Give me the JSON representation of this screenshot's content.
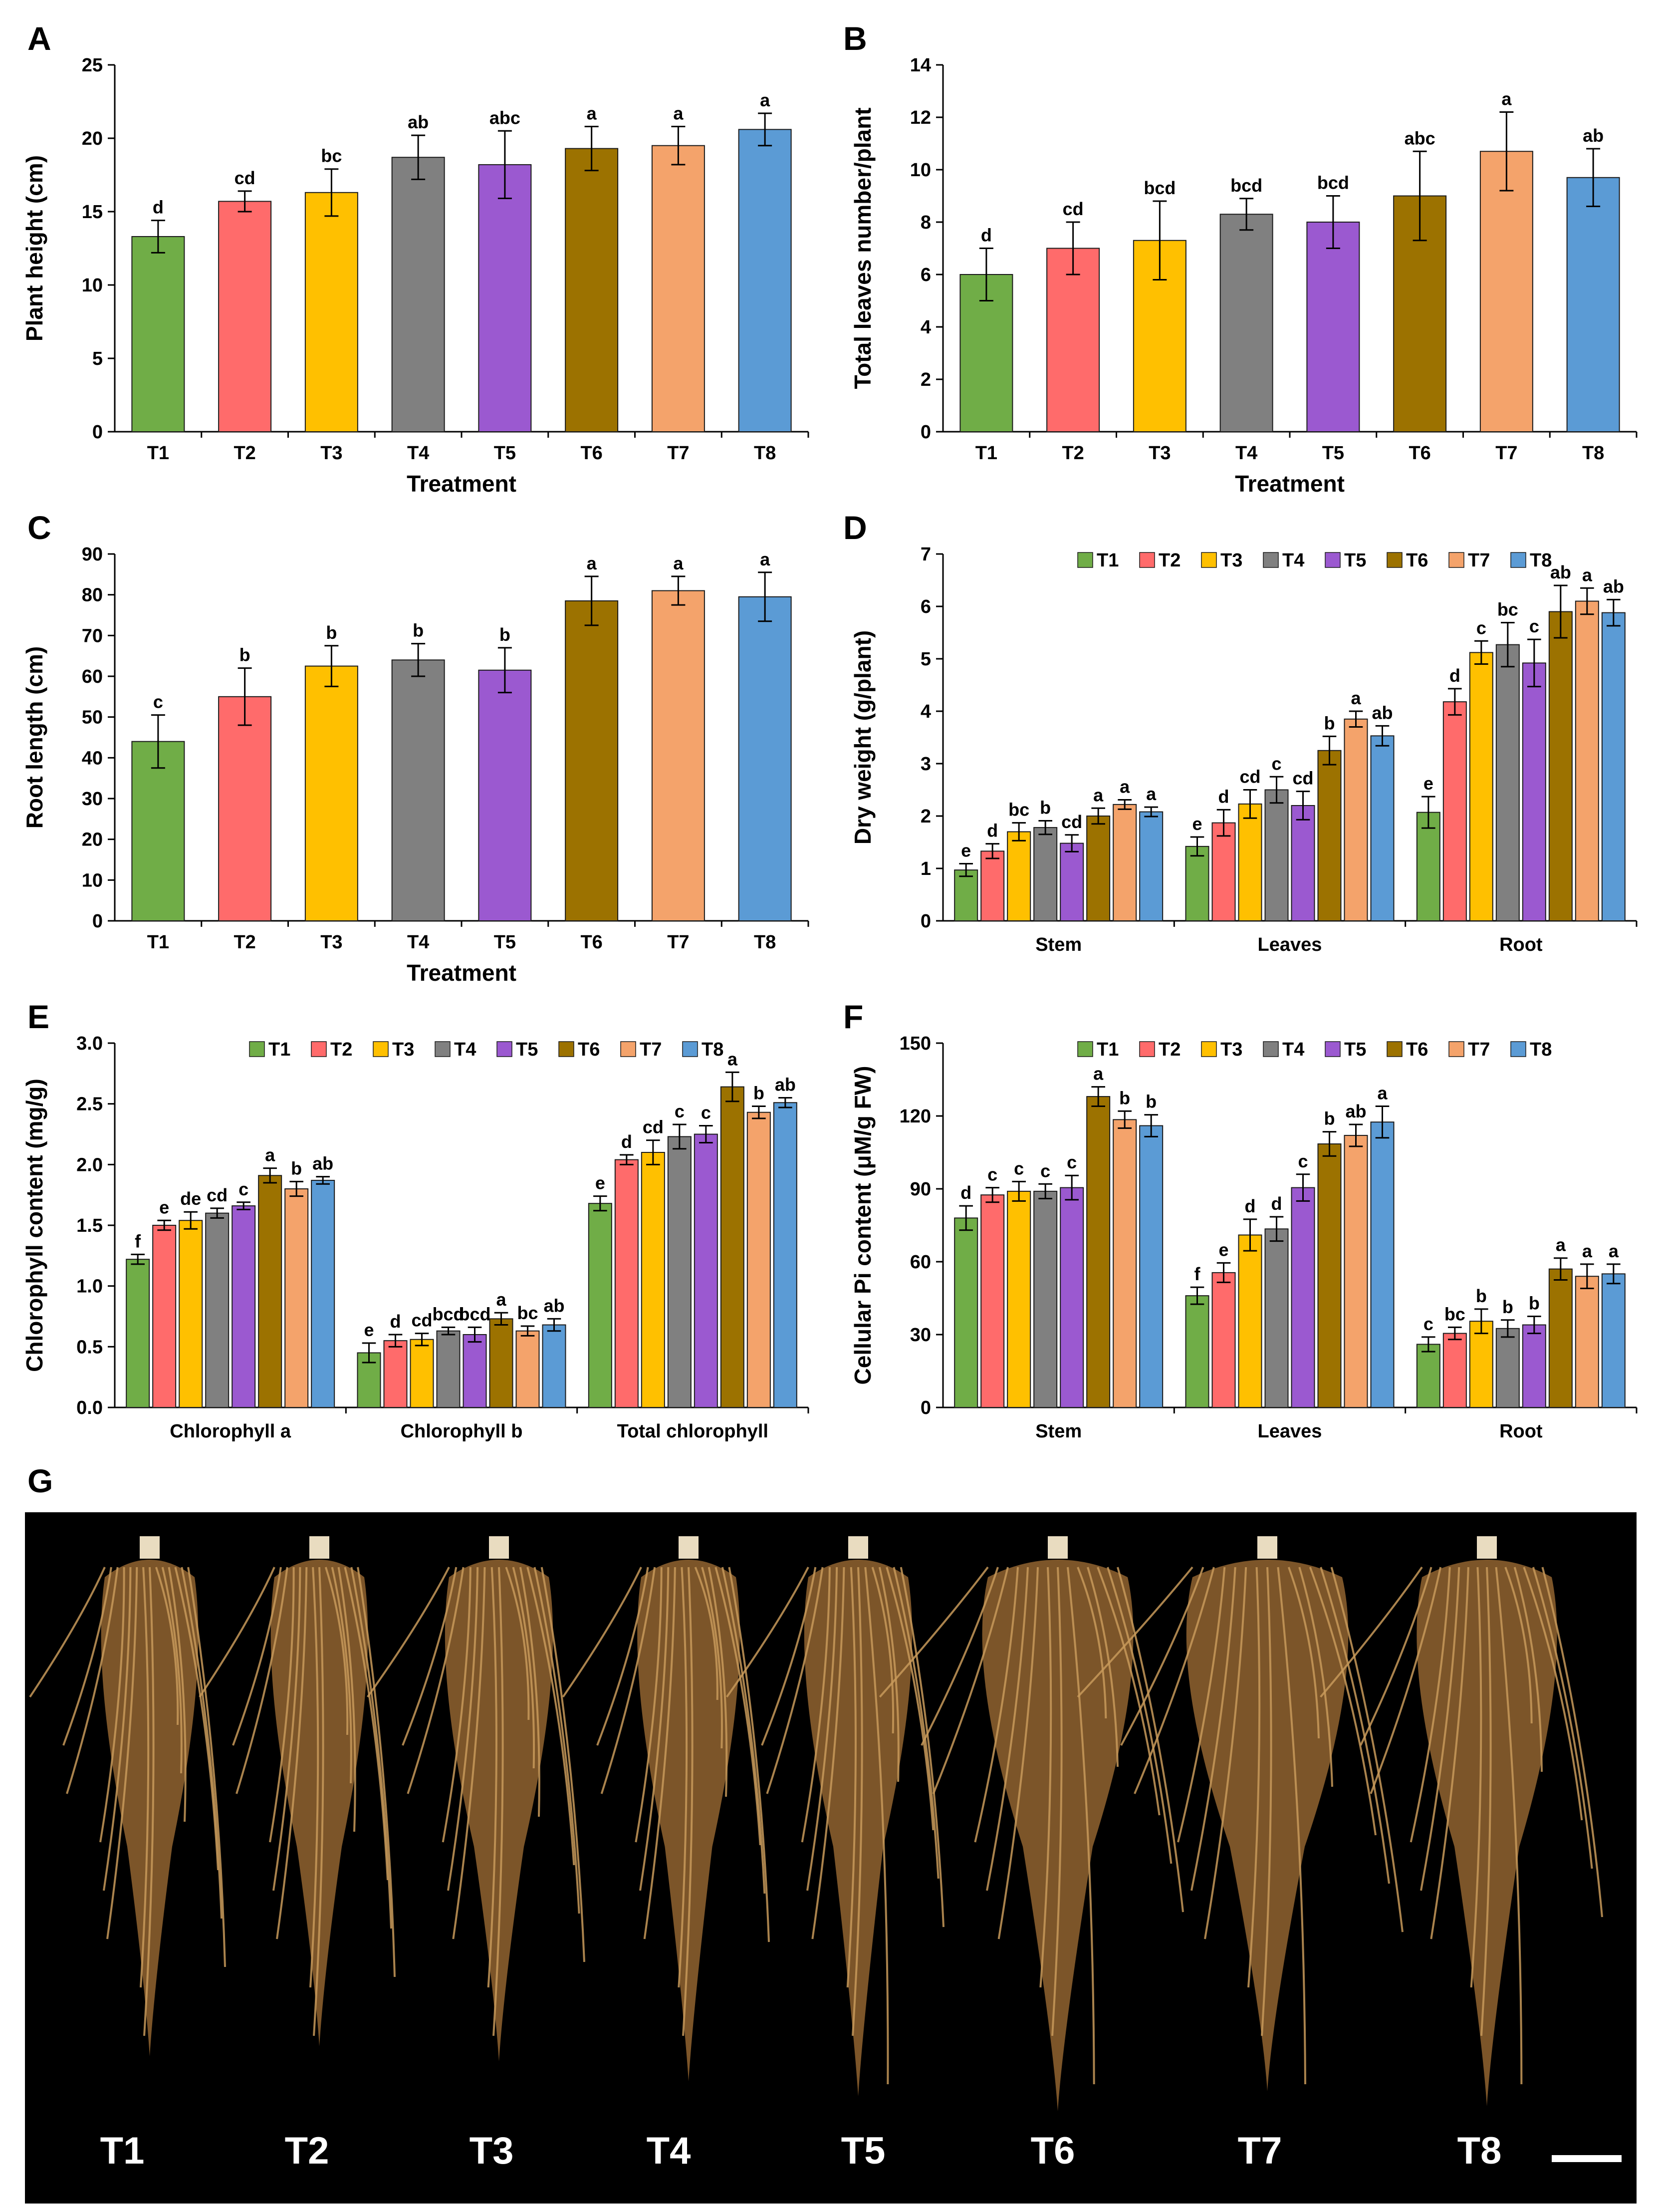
{
  "figure": {
    "photo": {
      "letter": "G",
      "labels": [
        "T1",
        "T2",
        "T3",
        "T4",
        "T5",
        "T6",
        "T7",
        "T8"
      ]
    }
  },
  "colors": {
    "T1": "#70AD47",
    "T2": "#FF6B6B",
    "T3": "#FFC000",
    "T4": "#808080",
    "T5": "#9B59D0",
    "T6": "#9C7200",
    "T7": "#F4A36B",
    "T8": "#5B9BD5"
  },
  "chart_data": [
    {
      "id": "A",
      "letter": "A",
      "type": "bar",
      "categories": [
        "T1",
        "T2",
        "T3",
        "T4",
        "T5",
        "T6",
        "T7",
        "T8"
      ],
      "values": [
        13.3,
        15.7,
        16.3,
        18.7,
        18.2,
        19.3,
        19.5,
        20.6
      ],
      "errors": [
        1.1,
        0.7,
        1.6,
        1.5,
        2.3,
        1.5,
        1.3,
        1.1
      ],
      "letters": [
        "d",
        "cd",
        "bc",
        "ab",
        "abc",
        "a",
        "a",
        "a"
      ],
      "ylim": [
        0,
        25
      ],
      "yticks": [
        "0",
        "5",
        "10",
        "15",
        "20",
        "25"
      ],
      "ylabel": "Plant height (cm)",
      "xlabel": "Treatment"
    },
    {
      "id": "B",
      "letter": "B",
      "type": "bar",
      "categories": [
        "T1",
        "T2",
        "T3",
        "T4",
        "T5",
        "T6",
        "T7",
        "T8"
      ],
      "values": [
        6.0,
        7.0,
        7.3,
        8.3,
        8.0,
        9.0,
        10.7,
        9.7
      ],
      "errors": [
        1.0,
        1.0,
        1.5,
        0.6,
        1.0,
        1.7,
        1.5,
        1.1
      ],
      "letters": [
        "d",
        "cd",
        "bcd",
        "bcd",
        "bcd",
        "abc",
        "a",
        "ab"
      ],
      "ylim": [
        0,
        14
      ],
      "yticks": [
        "0",
        "2",
        "4",
        "6",
        "8",
        "10",
        "12",
        "14"
      ],
      "ylabel": "Total leaves number/plant",
      "xlabel": "Treatment"
    },
    {
      "id": "C",
      "letter": "C",
      "type": "bar",
      "categories": [
        "T1",
        "T2",
        "T3",
        "T4",
        "T5",
        "T6",
        "T7",
        "T8"
      ],
      "values": [
        44,
        55,
        62.5,
        64,
        61.5,
        78.5,
        81,
        79.5
      ],
      "errors": [
        6.5,
        7,
        5,
        4,
        5.5,
        6,
        3.5,
        6
      ],
      "letters": [
        "c",
        "b",
        "b",
        "b",
        "b",
        "a",
        "a",
        "a"
      ],
      "ylim": [
        0,
        90
      ],
      "yticks": [
        "0",
        "10",
        "20",
        "30",
        "40",
        "50",
        "60",
        "70",
        "80",
        "90"
      ],
      "ylabel": "Root length (cm)",
      "xlabel": "Treatment"
    },
    {
      "id": "D",
      "letter": "D",
      "type": "bar",
      "groups": [
        "Stem",
        "Leaves",
        "Root"
      ],
      "legend": [
        "T1",
        "T2",
        "T3",
        "T4",
        "T5",
        "T6",
        "T7",
        "T8"
      ],
      "series": [
        {
          "name": "T1",
          "values": [
            0.97,
            1.42,
            2.07
          ],
          "errors": [
            0.12,
            0.18,
            0.3
          ],
          "letters": [
            "e",
            "e",
            "e"
          ]
        },
        {
          "name": "T2",
          "values": [
            1.33,
            1.87,
            4.18
          ],
          "errors": [
            0.14,
            0.25,
            0.25
          ],
          "letters": [
            "d",
            "d",
            "d"
          ]
        },
        {
          "name": "T3",
          "values": [
            1.7,
            2.23,
            5.12
          ],
          "errors": [
            0.17,
            0.27,
            0.22
          ],
          "letters": [
            "bc",
            "cd",
            "c"
          ]
        },
        {
          "name": "T4",
          "values": [
            1.78,
            2.5,
            5.27
          ],
          "errors": [
            0.13,
            0.25,
            0.42
          ],
          "letters": [
            "b",
            "c",
            "bc"
          ]
        },
        {
          "name": "T5",
          "values": [
            1.48,
            2.2,
            4.92
          ],
          "errors": [
            0.16,
            0.27,
            0.45
          ],
          "letters": [
            "cd",
            "cd",
            "c"
          ]
        },
        {
          "name": "T6",
          "values": [
            2.0,
            3.25,
            5.9
          ],
          "errors": [
            0.15,
            0.27,
            0.5
          ],
          "letters": [
            "a",
            "b",
            "ab"
          ]
        },
        {
          "name": "T7",
          "values": [
            2.22,
            3.85,
            6.1
          ],
          "errors": [
            0.09,
            0.15,
            0.25
          ],
          "letters": [
            "a",
            "a",
            "a"
          ]
        },
        {
          "name": "T8",
          "values": [
            2.08,
            3.53,
            5.88
          ],
          "errors": [
            0.09,
            0.19,
            0.25
          ],
          "letters": [
            "a",
            "ab",
            "ab"
          ]
        }
      ],
      "ylim": [
        0,
        7
      ],
      "yticks": [
        "0",
        "1",
        "2",
        "3",
        "4",
        "5",
        "6",
        "7"
      ],
      "ylabel": "Dry weight (g/plant)"
    },
    {
      "id": "E",
      "letter": "E",
      "type": "bar",
      "groups": [
        "Chlorophyll a",
        "Chlorophyll b",
        "Total chlorophyll"
      ],
      "legend": [
        "T1",
        "T2",
        "T3",
        "T4",
        "T5",
        "T6",
        "T7",
        "T8"
      ],
      "series": [
        {
          "name": "T1",
          "values": [
            1.22,
            0.45,
            1.68
          ],
          "errors": [
            0.04,
            0.08,
            0.06
          ],
          "letters": [
            "f",
            "e",
            "e"
          ]
        },
        {
          "name": "T2",
          "values": [
            1.5,
            0.55,
            2.04
          ],
          "errors": [
            0.04,
            0.05,
            0.04
          ],
          "letters": [
            "e",
            "d",
            "d"
          ]
        },
        {
          "name": "T3",
          "values": [
            1.54,
            0.56,
            2.1
          ],
          "errors": [
            0.07,
            0.05,
            0.1
          ],
          "letters": [
            "de",
            "cd",
            "cd"
          ]
        },
        {
          "name": "T4",
          "values": [
            1.6,
            0.63,
            2.23
          ],
          "errors": [
            0.04,
            0.03,
            0.1
          ],
          "letters": [
            "cd",
            "bcd",
            "c"
          ]
        },
        {
          "name": "T5",
          "values": [
            1.66,
            0.6,
            2.25
          ],
          "errors": [
            0.03,
            0.06,
            0.07
          ],
          "letters": [
            "c",
            "bcd",
            "c"
          ]
        },
        {
          "name": "T6",
          "values": [
            1.91,
            0.73,
            2.64
          ],
          "errors": [
            0.06,
            0.05,
            0.12
          ],
          "letters": [
            "a",
            "a",
            "a"
          ]
        },
        {
          "name": "T7",
          "values": [
            1.8,
            0.63,
            2.43
          ],
          "errors": [
            0.06,
            0.04,
            0.05
          ],
          "letters": [
            "b",
            "bc",
            "b"
          ]
        },
        {
          "name": "T8",
          "values": [
            1.87,
            0.68,
            2.51
          ],
          "errors": [
            0.03,
            0.05,
            0.04
          ],
          "letters": [
            "ab",
            "ab",
            "ab"
          ]
        }
      ],
      "ylim": [
        0,
        3.0
      ],
      "yticks": [
        "0.0",
        "0.5",
        "1.0",
        "1.5",
        "2.0",
        "2.5",
        "3.0"
      ],
      "ylabel": "Chlorophyll content (mg/g)"
    },
    {
      "id": "F",
      "letter": "F",
      "type": "bar",
      "groups": [
        "Stem",
        "Leaves",
        "Root"
      ],
      "legend": [
        "T1",
        "T2",
        "T3",
        "T4",
        "T5",
        "T6",
        "T7",
        "T8"
      ],
      "series": [
        {
          "name": "T1",
          "values": [
            78,
            46,
            26
          ],
          "errors": [
            5,
            3.5,
            3
          ],
          "letters": [
            "d",
            "f",
            "c"
          ]
        },
        {
          "name": "T2",
          "values": [
            87.5,
            55.5,
            30.5
          ],
          "errors": [
            3,
            4,
            2.5
          ],
          "letters": [
            "c",
            "e",
            "bc"
          ]
        },
        {
          "name": "T3",
          "values": [
            89,
            71,
            35.5
          ],
          "errors": [
            4,
            6.5,
            5
          ],
          "letters": [
            "c",
            "d",
            "b"
          ]
        },
        {
          "name": "T4",
          "values": [
            89,
            73.5,
            32.5
          ],
          "errors": [
            3,
            5,
            3.5
          ],
          "letters": [
            "c",
            "d",
            "b"
          ]
        },
        {
          "name": "T5",
          "values": [
            90.5,
            90.5,
            34
          ],
          "errors": [
            5,
            5.5,
            3.5
          ],
          "letters": [
            "c",
            "c",
            "b"
          ]
        },
        {
          "name": "T6",
          "values": [
            128,
            108.5,
            57
          ],
          "errors": [
            4,
            5,
            4.5
          ],
          "letters": [
            "a",
            "b",
            "a"
          ]
        },
        {
          "name": "T7",
          "values": [
            118.5,
            112,
            54
          ],
          "errors": [
            3.5,
            4.5,
            5
          ],
          "letters": [
            "b",
            "ab",
            "a"
          ]
        },
        {
          "name": "T8",
          "values": [
            116,
            117.5,
            55
          ],
          "errors": [
            4.5,
            6.5,
            4
          ],
          "letters": [
            "b",
            "a",
            "a"
          ]
        }
      ],
      "ylim": [
        0,
        150
      ],
      "yticks": [
        "0",
        "30",
        "60",
        "90",
        "120",
        "150"
      ],
      "ylabel": "Cellular Pi content (μM/g FW)"
    }
  ]
}
